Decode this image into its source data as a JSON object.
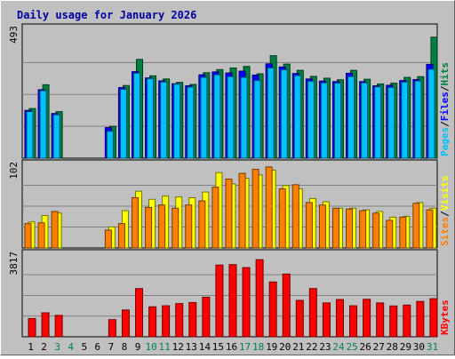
{
  "chart_data": {
    "type": "bar",
    "title": "Daily usage for January 2026",
    "categories": [
      "1",
      "2",
      "3",
      "4",
      "5",
      "6",
      "7",
      "8",
      "9",
      "10",
      "11",
      "12",
      "13",
      "14",
      "15",
      "16",
      "17",
      "18",
      "19",
      "20",
      "21",
      "22",
      "23",
      "24",
      "25",
      "26",
      "27",
      "28",
      "29",
      "30",
      "31"
    ],
    "weekend_days": [
      "3",
      "4",
      "10",
      "11",
      "17",
      "18",
      "24",
      "25",
      "31"
    ],
    "panels": [
      {
        "id": "hits",
        "ymax_label": "493",
        "ylim": [
          0,
          493
        ],
        "axis_labels": [
          "Pages",
          "Files",
          "Hits"
        ],
        "series": [
          {
            "name": "Hits",
            "color": "#008040",
            "values": [
              190,
              281,
              178,
              0,
              0,
              0,
              122,
              278,
              378,
              315,
              303,
              290,
              282,
              327,
              339,
              345,
              351,
              323,
              392,
              360,
              336,
              313,
              306,
              300,
              336,
              302,
              284,
              287,
              309,
              312,
              463
            ]
          },
          {
            "name": "Files",
            "color": "#0000ff",
            "values": [
              183,
              262,
              171,
              0,
              0,
              0,
              117,
              270,
              331,
              307,
              296,
              285,
              277,
              319,
              330,
              326,
              333,
              318,
              361,
              349,
              324,
              303,
              295,
              293,
              325,
              293,
              277,
              279,
              297,
              301,
              359
            ]
          },
          {
            "name": "Pages",
            "color": "#00c0ff",
            "values": [
              178,
              258,
              166,
              0,
              0,
              0,
              103,
              263,
              325,
              304,
              291,
              283,
              272,
              309,
              319,
              312,
              309,
              297,
              345,
              338,
              316,
              294,
              288,
              287,
              312,
              288,
              273,
              270,
              291,
              295,
              340
            ]
          }
        ]
      },
      {
        "id": "visits",
        "ymax_label": "102",
        "ylim": [
          0,
          102
        ],
        "axis_labels": [
          "Sites",
          "Visits"
        ],
        "series": [
          {
            "name": "Visits",
            "color": "#ffff00",
            "values": [
              32,
              40,
              43,
              0,
              0,
              0,
              26,
              46,
              70,
              60,
              64,
              63,
              62,
              69,
              93,
              79,
              86,
              90,
              96,
              77,
              73,
              61,
              57,
              49,
              49,
              47,
              45,
              38,
              39,
              56,
              49
            ]
          },
          {
            "name": "Sites",
            "color": "#ff8000",
            "values": [
              30,
              31,
              45,
              0,
              0,
              0,
              22,
              30,
              62,
              50,
              53,
              49,
              53,
              58,
              75,
              85,
              92,
              97,
              100,
              73,
              78,
              56,
              53,
              49,
              48,
              46,
              43,
              34,
              38,
              55,
              47
            ]
          }
        ]
      },
      {
        "id": "kbytes",
        "ymax_label": "3817",
        "ylim": [
          0,
          3817
        ],
        "axis_labels": [
          "KBytes"
        ],
        "series": [
          {
            "name": "KBytes",
            "color": "#ff0000",
            "values": [
              850,
              1120,
              1000,
              0,
              0,
              0,
              800,
              1250,
              2250,
              1400,
              1450,
              1550,
              1600,
              1850,
              3350,
              3370,
              3230,
              3600,
              2560,
              2930,
              1700,
              2250,
              1580,
              1740,
              1450,
              1750,
              1580,
              1440,
              1480,
              1650,
              1780
            ]
          }
        ]
      }
    ]
  }
}
